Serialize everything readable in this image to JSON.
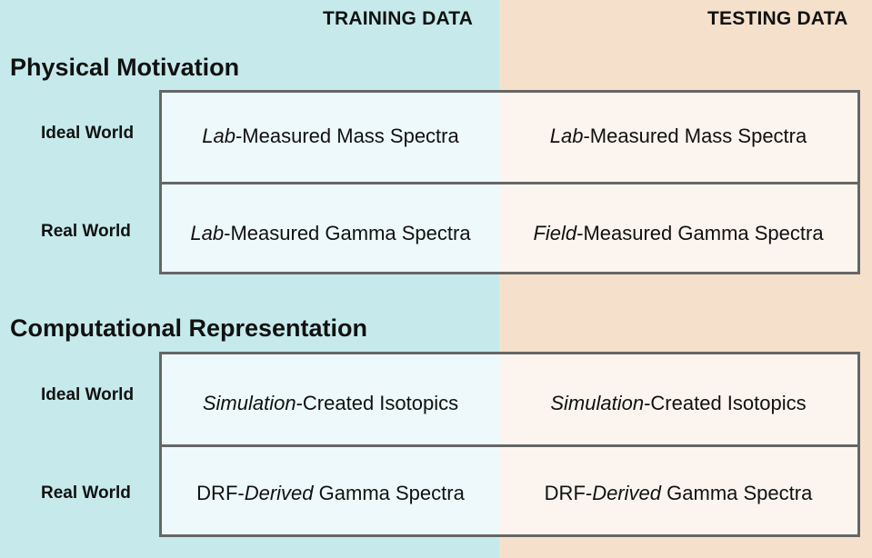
{
  "headers": {
    "training": "TRAINING DATA",
    "testing": "TESTING DATA"
  },
  "sections": [
    {
      "title": "Physical Motivation",
      "rows": [
        {
          "label": "Ideal World",
          "training": {
            "italic": "Lab",
            "rest": "-Measured Mass Spectra"
          },
          "testing": {
            "italic": "Lab",
            "rest": "-Measured Mass Spectra"
          }
        },
        {
          "label": "Real World",
          "training": {
            "italic": "Lab",
            "rest": "-Measured Gamma Spectra"
          },
          "testing": {
            "italic": "Field",
            "rest": "-Measured Gamma Spectra"
          }
        }
      ]
    },
    {
      "title": "Computational Representation",
      "rows": [
        {
          "label": "Ideal World",
          "training": {
            "italic": "Simulation",
            "rest": "-Created Isotopics"
          },
          "testing": {
            "italic": "Simulation",
            "rest": "-Created Isotopics"
          }
        },
        {
          "label": "Real World",
          "training": {
            "prefix": "DRF-",
            "italic": "Derived",
            "rest": " Gamma Spectra"
          },
          "testing": {
            "prefix": "DRF-",
            "italic": "Derived",
            "rest": " Gamma Spectra"
          }
        }
      ]
    }
  ]
}
